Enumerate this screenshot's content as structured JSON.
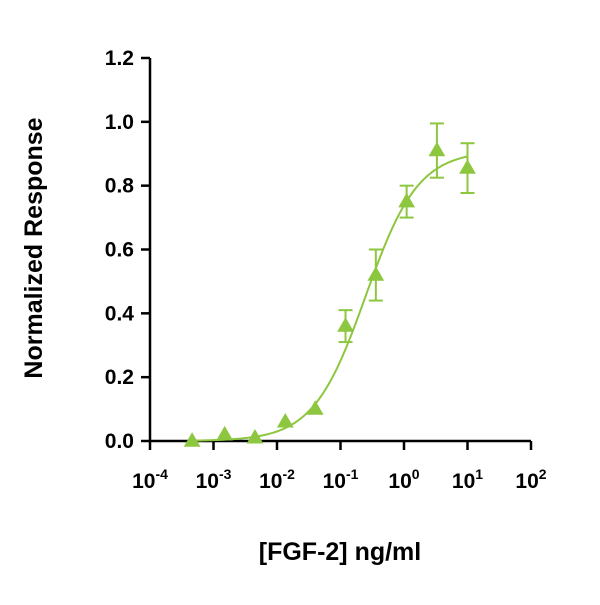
{
  "chart_data": {
    "type": "scatter",
    "title": "",
    "xlabel": "[FGF-2] ng/ml",
    "ylabel": "Normalized Response",
    "xscale": "log",
    "xlim": [
      0.0001,
      100
    ],
    "ylim": [
      0,
      1.2
    ],
    "x_ticks": [
      {
        "base": "10",
        "exp": "-4",
        "value": 0.0001
      },
      {
        "base": "10",
        "exp": "-3",
        "value": 0.001
      },
      {
        "base": "10",
        "exp": "-2",
        "value": 0.01
      },
      {
        "base": "10",
        "exp": "-1",
        "value": 0.1
      },
      {
        "base": "10",
        "exp": "0",
        "value": 1
      },
      {
        "base": "10",
        "exp": "1",
        "value": 10
      },
      {
        "base": "10",
        "exp": "2",
        "value": 100
      }
    ],
    "y_ticks": [
      {
        "label": "0.0",
        "value": 0
      },
      {
        "label": "0.2",
        "value": 0.2
      },
      {
        "label": "0.4",
        "value": 0.4
      },
      {
        "label": "0.6",
        "value": 0.6
      },
      {
        "label": "0.8",
        "value": 0.8
      },
      {
        "label": "1.0",
        "value": 1.0
      },
      {
        "label": "1.2",
        "value": 1.2
      }
    ],
    "grid": false,
    "color": "#8dc63f",
    "marker": "triangle",
    "series": [
      {
        "points": [
          {
            "x": 0.00046,
            "y": 0.0,
            "err": 0
          },
          {
            "x": 0.0015,
            "y": 0.02,
            "err": 0
          },
          {
            "x": 0.0045,
            "y": 0.01,
            "err": 0
          },
          {
            "x": 0.0135,
            "y": 0.06,
            "err": 0
          },
          {
            "x": 0.04,
            "y": 0.1,
            "err": 0
          },
          {
            "x": 0.12,
            "y": 0.36,
            "err": 0.05
          },
          {
            "x": 0.36,
            "y": 0.52,
            "err": 0.08
          },
          {
            "x": 1.1,
            "y": 0.75,
            "err": 0.05
          },
          {
            "x": 3.3,
            "y": 0.91,
            "err": 0.085
          },
          {
            "x": 10,
            "y": 0.855,
            "err": 0.078
          }
        ],
        "fit": {
          "type": "4PL",
          "bottom": 0,
          "top": 0.91,
          "ec50": 0.25,
          "hill": 1.05
        }
      }
    ]
  }
}
